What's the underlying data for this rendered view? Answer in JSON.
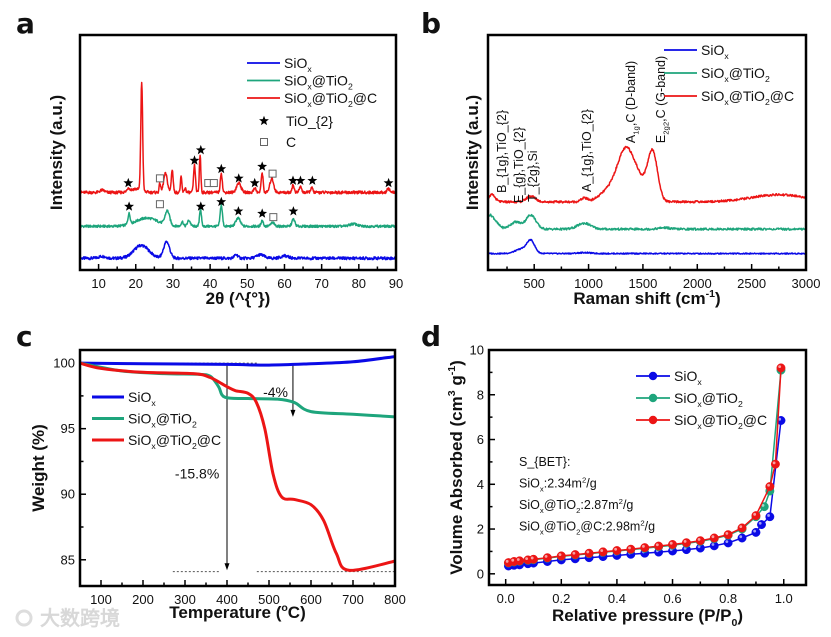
{
  "watermark": "大数跨境",
  "colors": {
    "blue": "#0a0ae6",
    "green": "#1ea57c",
    "red": "#ec1515"
  },
  "chart_data": [
    {
      "id": "a",
      "panel_label": "a",
      "type": "line",
      "xlabel": "2θ (^{°})",
      "ylabel": "Intensity (a.u.)",
      "xlim": [
        5,
        90
      ],
      "ylim": [
        0,
        100
      ],
      "xticks": [
        "10",
        "20",
        "30",
        "40",
        "50",
        "60",
        "70",
        "80",
        "90"
      ],
      "yticks": [],
      "series": [
        {
          "name": "SiO_{x}",
          "color": "blue",
          "baseline": 5,
          "noise": 0.6,
          "peaks": [
            [
              21.5,
              5.5,
              2
            ],
            [
              28.3,
              7,
              0.8
            ],
            [
              47,
              1.5,
              0.5
            ],
            [
              53.5,
              1.5,
              1
            ],
            [
              60,
              1,
              1
            ],
            [
              11,
              0.8,
              1
            ]
          ]
        },
        {
          "name": "SiO_{x}@TiO_{2}",
          "color": "green",
          "baseline": 18.6,
          "noise": 0.5,
          "peaks": [
            [
              18.2,
              4.5,
              0.3
            ],
            [
              23,
              3.5,
              3
            ],
            [
              28.5,
              6,
              0.6
            ],
            [
              32.5,
              2,
              0.3
            ],
            [
              34.3,
              2.5,
              0.4
            ],
            [
              37.4,
              7.5,
              0.25
            ],
            [
              43,
              9,
              0.3
            ],
            [
              47.5,
              3.5,
              0.6
            ],
            [
              54,
              2.5,
              0.3
            ],
            [
              56.8,
              1.5,
              0.5
            ],
            [
              62.4,
              3,
              0.4
            ],
            [
              78.5,
              1,
              1
            ]
          ]
        },
        {
          "name": "SiO_{x}@TiO_{2}@C",
          "color": "red",
          "baseline": 33,
          "noise": 0.6,
          "peaks": [
            [
              11,
              1,
              0.6
            ],
            [
              18,
              1.5,
              0.3
            ],
            [
              20,
              1.5,
              1.5
            ],
            [
              21.6,
              46,
              0.25
            ],
            [
              26.5,
              4,
              0.2
            ],
            [
              28,
              8,
              0.5
            ],
            [
              29.8,
              9.8,
              0.25
            ],
            [
              32.2,
              6.4,
              0.2
            ],
            [
              33.3,
              2,
              0.2
            ],
            [
              35.8,
              11.5,
              0.25
            ],
            [
              37.3,
              16,
              0.2
            ],
            [
              43,
              8.5,
              0.25
            ],
            [
              47.7,
              4,
              0.6
            ],
            [
              52,
              2,
              0.3
            ],
            [
              54,
              8.5,
              0.25
            ],
            [
              56.6,
              6,
              0.5
            ],
            [
              62.3,
              3,
              0.3
            ],
            [
              64.3,
              2.5,
              0.3
            ],
            [
              67.3,
              2,
              0.3
            ],
            [
              88,
              1.5,
              0.4
            ]
          ]
        }
      ],
      "markers": [
        {
          "symbol": "star",
          "label": "TiO_{2}",
          "points": [
            [
              18,
              37
            ],
            [
              35.8,
              46.6
            ],
            [
              37.5,
              51
            ],
            [
              43,
              43
            ],
            [
              47.7,
              39
            ],
            [
              52,
              37
            ],
            [
              54,
              44
            ],
            [
              62.3,
              38
            ],
            [
              64.3,
              38
            ],
            [
              67.5,
              38
            ],
            [
              88,
              37
            ],
            [
              18.2,
              27
            ],
            [
              37.5,
              27
            ],
            [
              43,
              29
            ],
            [
              47.6,
              25
            ],
            [
              54,
              24
            ],
            [
              62.4,
              25
            ]
          ]
        },
        {
          "symbol": "square",
          "label": "C",
          "points": [
            [
              26.5,
              39
            ],
            [
              39.5,
              37
            ],
            [
              41,
              37
            ],
            [
              56.8,
              41
            ],
            [
              26.5,
              28
            ],
            [
              57,
              22.5
            ]
          ]
        }
      ],
      "legend_position": "top-right"
    },
    {
      "id": "b",
      "panel_label": "b",
      "type": "line",
      "xlabel": "Raman shift (cm^{-1})",
      "ylabel": "Intensity (a.u.)",
      "xlim": [
        75,
        3000
      ],
      "ylim": [
        0,
        100
      ],
      "xticks": [
        "500",
        "1000",
        "1500",
        "2000",
        "2500",
        "3000"
      ],
      "yticks": [],
      "series": [
        {
          "name": "SiO_{x}",
          "color": "blue",
          "baseline": 7,
          "noise": 0.25,
          "peaks": [
            [
              470,
              5,
              35
            ],
            [
              390,
              2,
              60
            ],
            [
              960,
              0.4,
              60
            ]
          ]
        },
        {
          "name": "SiO_{x}@TiO_{2}",
          "color": "green",
          "baseline": 17.4,
          "noise": 0.45,
          "peaks": [
            [
              90,
              6,
              55
            ],
            [
              330,
              3,
              50
            ],
            [
              470,
              6,
              45
            ],
            [
              960,
              2.5,
              60
            ],
            [
              1700,
              0.6,
              50
            ]
          ]
        },
        {
          "name": "SiO_{x}@TiO_{2}@C",
          "color": "red",
          "baseline": 29,
          "noise": 0.45,
          "peaks": [
            [
              110,
              3,
              30
            ],
            [
              470,
              2.5,
              40
            ],
            [
              960,
              1.5,
              30
            ],
            [
              1200,
              5,
              90
            ],
            [
              1340,
              19,
              75
            ],
            [
              1460,
              8,
              80
            ],
            [
              1590,
              20,
              45
            ],
            [
              2750,
              3,
              250
            ]
          ]
        }
      ],
      "annotations": [
        {
          "text": "B_{1g},TiO_{2}",
          "x": 240,
          "y": 32.8
        },
        {
          "text": "E_{g},TiO_{2}",
          "x": 397,
          "y": 28.5
        },
        {
          "text": "T_{2g},Si",
          "x": 526,
          "y": 29
        },
        {
          "text": "A_{1g},TiO_{2}",
          "x": 1022,
          "y": 33.2
        },
        {
          "text": "A_{1g},C (D-band)",
          "x": 1427,
          "y": 54
        },
        {
          "text": "E_{2g2},C (G-band)",
          "x": 1703,
          "y": 54
        }
      ],
      "legend_position": "top-right"
    },
    {
      "id": "c",
      "panel_label": "c",
      "type": "line",
      "xlabel": "Temperature (^{o}C)",
      "ylabel": "Weight (%)",
      "xlim": [
        50,
        800
      ],
      "ylim": [
        83,
        101
      ],
      "xticks": [
        "100",
        "200",
        "300",
        "400",
        "500",
        "600",
        "700",
        "800"
      ],
      "yticks": [
        "85",
        "90",
        "95",
        "100"
      ],
      "series": [
        {
          "name": "SiO_{x}",
          "color": "blue",
          "points": [
            [
              50,
              100
            ],
            [
              200,
              99.95
            ],
            [
              400,
              99.9
            ],
            [
              500,
              99.85
            ],
            [
              600,
              99.95
            ],
            [
              700,
              100.1
            ],
            [
              800,
              100.5
            ]
          ]
        },
        {
          "name": "SiO_{x}@TiO_{2}",
          "color": "green",
          "points": [
            [
              50,
              100
            ],
            [
              150,
              99.4
            ],
            [
              250,
              99.2
            ],
            [
              330,
              99.15
            ],
            [
              360,
              99
            ],
            [
              380,
              98.2
            ],
            [
              395,
              97.4
            ],
            [
              450,
              97.3
            ],
            [
              520,
              97.25
            ],
            [
              560,
              97
            ],
            [
              600,
              96.3
            ],
            [
              700,
              96.1
            ],
            [
              800,
              95.9
            ]
          ]
        },
        {
          "name": "SiO_{x}@TiO_{2}@C",
          "color": "red",
          "points": [
            [
              50,
              100
            ],
            [
              100,
              99.6
            ],
            [
              200,
              99.3
            ],
            [
              320,
              99.2
            ],
            [
              360,
              98.9
            ],
            [
              400,
              98.2
            ],
            [
              420,
              97.9
            ],
            [
              450,
              97.7
            ],
            [
              470,
              97
            ],
            [
              490,
              95
            ],
            [
              510,
              91.5
            ],
            [
              530,
              89.8
            ],
            [
              560,
              89.6
            ],
            [
              600,
              89.2
            ],
            [
              630,
              88
            ],
            [
              660,
              85.5
            ],
            [
              690,
              84.2
            ],
            [
              800,
              84.9
            ]
          ]
        }
      ],
      "annotations": [
        {
          "text": "-4%",
          "x": 486,
          "y": 97.4
        },
        {
          "text": "-15.8%",
          "x": 276,
          "y": 91.2
        }
      ],
      "arrows": [
        {
          "x": 400,
          "from": 100,
          "to": 84.2
        },
        {
          "x": 557,
          "from": 100,
          "to": 95.9
        }
      ],
      "reference_lines": [
        {
          "y": 100,
          "x": [
            209,
            471
          ]
        },
        {
          "y": 84.1,
          "x": [
            271,
            381
          ]
        },
        {
          "y": 84.1,
          "x": [
            471,
            800
          ]
        }
      ],
      "legend_position": "middle-left"
    },
    {
      "id": "d",
      "panel_label": "d",
      "type": "scatter",
      "xlabel": "Relative pressure (P/P_{0})",
      "ylabel": "Volume Absorbed (cm^{3} g^{-1})",
      "xlim": [
        -0.06,
        1.08
      ],
      "ylim": [
        -0.5,
        10
      ],
      "xticks": [
        "0.0",
        "0.2",
        "0.4",
        "0.6",
        "0.8",
        "1.0"
      ],
      "yticks": [
        "0",
        "2",
        "4",
        "6",
        "8",
        "10"
      ],
      "series": [
        {
          "name": "SiO_{x}",
          "color": "blue",
          "x": [
            0.01,
            0.03,
            0.05,
            0.08,
            0.1,
            0.15,
            0.2,
            0.25,
            0.3,
            0.35,
            0.4,
            0.45,
            0.5,
            0.55,
            0.6,
            0.65,
            0.7,
            0.75,
            0.8,
            0.85,
            0.9,
            0.92,
            0.95,
            0.99
          ],
          "y": [
            0.35,
            0.38,
            0.4,
            0.45,
            0.48,
            0.55,
            0.62,
            0.67,
            0.72,
            0.77,
            0.82,
            0.87,
            0.92,
            0.97,
            1.02,
            1.08,
            1.15,
            1.25,
            1.38,
            1.6,
            1.85,
            2.2,
            2.55,
            6.85
          ]
        },
        {
          "name": "SiO_{x}@TiO_{2}",
          "color": "green",
          "x": [
            0.01,
            0.03,
            0.05,
            0.08,
            0.1,
            0.15,
            0.2,
            0.25,
            0.3,
            0.35,
            0.4,
            0.45,
            0.5,
            0.55,
            0.6,
            0.65,
            0.7,
            0.75,
            0.8,
            0.85,
            0.9,
            0.93,
            0.95,
            0.99
          ],
          "y": [
            0.48,
            0.53,
            0.56,
            0.6,
            0.63,
            0.7,
            0.78,
            0.84,
            0.9,
            0.96,
            1.02,
            1.08,
            1.14,
            1.21,
            1.28,
            1.36,
            1.45,
            1.57,
            1.72,
            2.0,
            2.55,
            3.0,
            3.7,
            9.1
          ]
        },
        {
          "name": "SiO_{x}@TiO_{2}@C",
          "color": "red",
          "x": [
            0.01,
            0.03,
            0.05,
            0.08,
            0.1,
            0.15,
            0.2,
            0.25,
            0.3,
            0.35,
            0.4,
            0.45,
            0.5,
            0.55,
            0.6,
            0.65,
            0.7,
            0.75,
            0.8,
            0.85,
            0.9,
            0.95,
            0.97,
            0.99
          ],
          "y": [
            0.5,
            0.55,
            0.58,
            0.62,
            0.65,
            0.72,
            0.8,
            0.86,
            0.92,
            0.98,
            1.04,
            1.1,
            1.17,
            1.24,
            1.31,
            1.39,
            1.48,
            1.6,
            1.75,
            2.05,
            2.6,
            3.9,
            4.9,
            9.2
          ]
        }
      ],
      "bet_text": [
        "S_{BET}:",
        "SiO_{x}:2.34m^{2}/g",
        "SiO_{x}@TiO_{2}:2.87m^{2}/g",
        "SiO_{x}@TiO_{2}@C:2.98m^{2}/g"
      ],
      "legend_position": "top-right"
    }
  ]
}
